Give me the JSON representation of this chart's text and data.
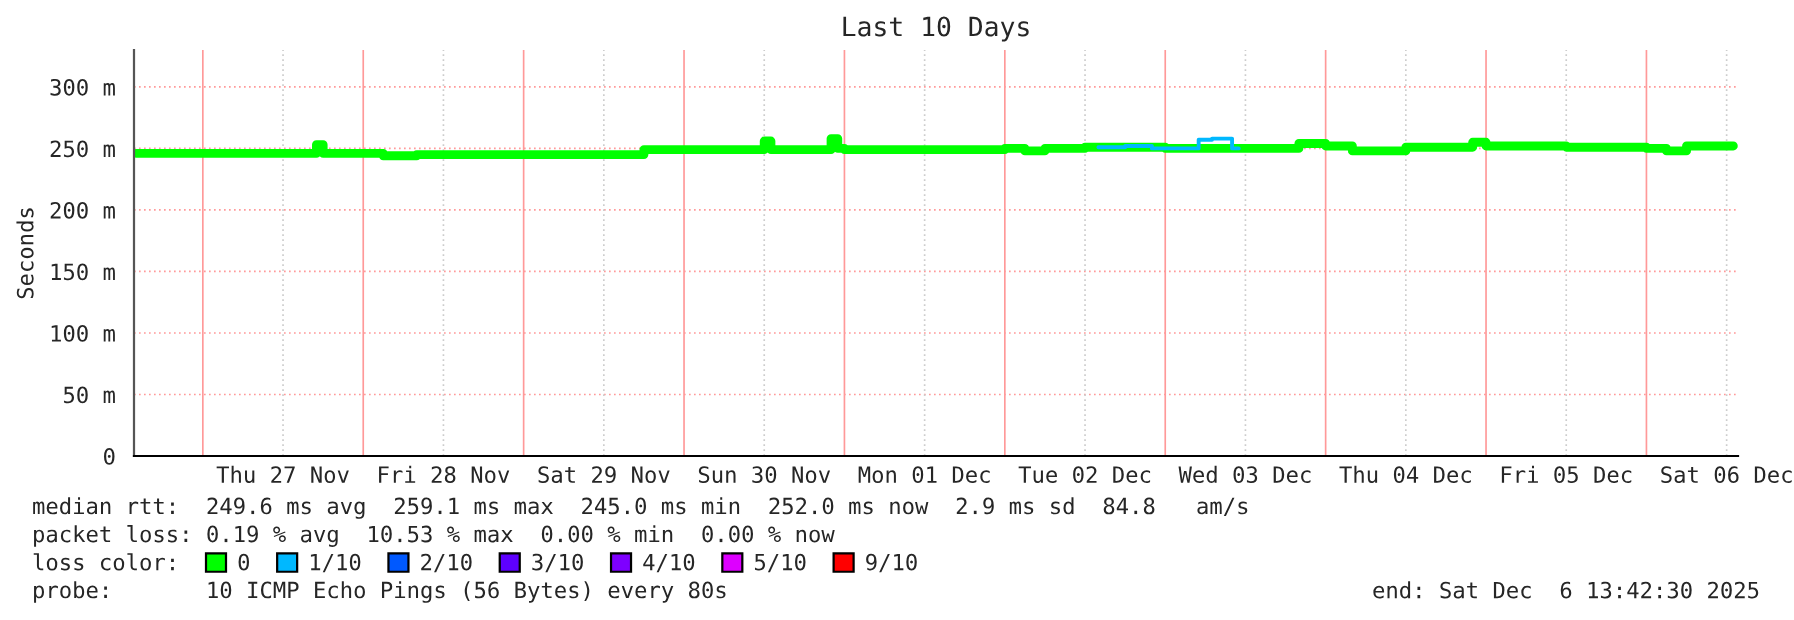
{
  "chart_data": {
    "type": "line",
    "title": "Last 10 Days",
    "ylabel": "Seconds",
    "legend_title": "loss color:",
    "legend": "bottom",
    "grid": true,
    "marker": "none",
    "line_style": "solid",
    "xlim": [
      "2025-11-26T13:42",
      "2025-12-06T13:42"
    ],
    "xticks": [
      {
        "value": "2025-11-27",
        "label": null
      },
      {
        "value": "2025-11-27T12:00",
        "label": "Thu 27 Nov"
      },
      {
        "value": "2025-11-28",
        "label": null
      },
      {
        "value": "2025-11-28T12:00",
        "label": "Fri 28 Nov"
      },
      {
        "value": "2025-11-29",
        "label": null
      },
      {
        "value": "2025-11-29T12:00",
        "label": "Sat 29 Nov"
      },
      {
        "value": "2025-11-30",
        "label": null
      },
      {
        "value": "2025-11-30T12:00",
        "label": "Sun 30 Nov"
      },
      {
        "value": "2025-12-01",
        "label": null
      },
      {
        "value": "2025-12-01T12:00",
        "label": "Mon 01 Dec"
      },
      {
        "value": "2025-12-02",
        "label": null
      },
      {
        "value": "2025-12-02T12:00",
        "label": "Tue 02 Dec"
      },
      {
        "value": "2025-12-03",
        "label": null
      },
      {
        "value": "2025-12-03T12:00",
        "label": "Wed 03 Dec"
      },
      {
        "value": "2025-12-04",
        "label": null
      },
      {
        "value": "2025-12-04T12:00",
        "label": "Thu 04 Dec"
      },
      {
        "value": "2025-12-05",
        "label": null
      },
      {
        "value": "2025-12-05T12:00",
        "label": "Fri 05 Dec"
      },
      {
        "value": "2025-12-06",
        "label": null
      },
      {
        "value": "2025-12-06T12:00",
        "label": "Sat 06 Dec"
      }
    ],
    "ylim": [
      0,
      330
    ],
    "yticks": [
      0,
      {
        "value": 50,
        "label": "50 m"
      },
      {
        "value": 100,
        "label": "100 m"
      },
      {
        "value": 150,
        "label": "150 m"
      },
      {
        "value": 200,
        "label": "200 m"
      },
      {
        "value": 250,
        "label": "250 m"
      },
      {
        "value": 300,
        "label": "300 m"
      }
    ],
    "series": [
      {
        "name": "0",
        "color": "#00ff00",
        "x": [
          "2025-11-26T14:00",
          "2025-11-27T12:00",
          "2025-11-27T17:00",
          "2025-11-27T18:00",
          "2025-11-28T03:00",
          "2025-11-28T07:00",
          "2025-11-28T08:00",
          "2025-11-29T16:00",
          "2025-11-29T18:00",
          "2025-11-30T11:00",
          "2025-11-30T12:00",
          "2025-11-30T13:00",
          "2025-11-30T22:00",
          "2025-11-30T23:00",
          "2025-12-01T00:00",
          "2025-12-02T00:00",
          "2025-12-02T03:00",
          "2025-12-02T06:00",
          "2025-12-02T12:00",
          "2025-12-03T00:00",
          "2025-12-03T04:00",
          "2025-12-03T12:00",
          "2025-12-03T20:00",
          "2025-12-04T00:00",
          "2025-12-04T04:00",
          "2025-12-04T10:00",
          "2025-12-04T12:00",
          "2025-12-04T22:00",
          "2025-12-05T00:00",
          "2025-12-05T12:00",
          "2025-12-06T00:00",
          "2025-12-06T03:00",
          "2025-12-06T06:00",
          "2025-12-06T13:00"
        ],
        "values": [
          246,
          246,
          253,
          246,
          244,
          244,
          245,
          245,
          249,
          249,
          256,
          249,
          258,
          250,
          249,
          250,
          248,
          250,
          251,
          250,
          250,
          250,
          254,
          252,
          248,
          248,
          251,
          255,
          252,
          251,
          250,
          248,
          252,
          252
        ]
      },
      {
        "name": "1/10",
        "color": "#00b8ff",
        "x": [
          "2025-12-02T14:00",
          "2025-12-02T18:00",
          "2025-12-02T22:00",
          "2025-12-03T04:00",
          "2025-12-03T05:00",
          "2025-12-03T07:00",
          "2025-12-03T09:00",
          "2025-12-03T10:00",
          "2025-12-03T11:00"
        ],
        "values": [
          251,
          252,
          250,
          250,
          257,
          258,
          258,
          250,
          250
        ]
      },
      {
        "name": "2/10",
        "color": "#0059ff"
      },
      {
        "name": "3/10",
        "color": "#5e00ff"
      },
      {
        "name": "4/10",
        "color": "#7e00ff"
      },
      {
        "name": "5/10",
        "color": "#dd00ff"
      },
      {
        "name": "9/10",
        "color": "#ff0000"
      }
    ],
    "annotations": [
      "median rtt:  249.6 ms avg  259.1 ms max  245.0 ms min  252.0 ms now  2.9 ms sd  84.8   am/s",
      "packet loss: 0.19 % avg  10.53 % max  0.00 % min  0.00 % now",
      "probe:       10 ICMP Echo Pings (56 Bytes) every 80s",
      "end: Sat Dec  6 13:42:30 2025"
    ]
  }
}
